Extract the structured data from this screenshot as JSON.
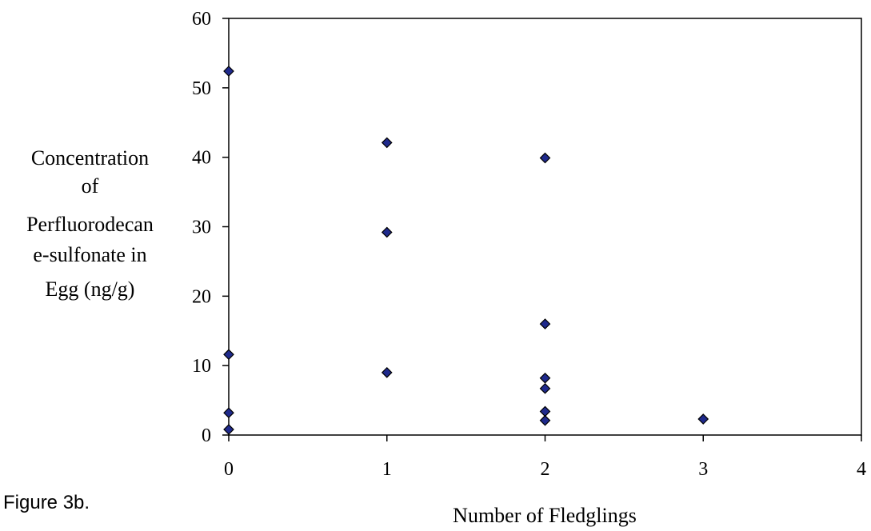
{
  "figure": {
    "caption": "Figure 3b."
  },
  "chart_data": {
    "type": "scatter",
    "title": "",
    "xlabel": "Number of Fledglings",
    "ylabel_lines": [
      "Concentration",
      "of",
      "Perfluorodecan",
      "e-sulfonate in",
      "Egg (ng/g)"
    ],
    "xlim": [
      0,
      4
    ],
    "ylim": [
      0,
      60
    ],
    "x_ticks": [
      0,
      1,
      2,
      3,
      4
    ],
    "y_ticks": [
      0,
      10,
      20,
      30,
      40,
      50,
      60
    ],
    "grid": false,
    "legend": "none",
    "marker": {
      "shape": "diamond",
      "fill_color": "#1f2a8c",
      "edge_color": "#000000"
    },
    "points": [
      {
        "x": 0,
        "y": 52.4
      },
      {
        "x": 0,
        "y": 11.6
      },
      {
        "x": 0,
        "y": 3.2
      },
      {
        "x": 0,
        "y": 0.8
      },
      {
        "x": 1,
        "y": 42.1
      },
      {
        "x": 1,
        "y": 29.2
      },
      {
        "x": 1,
        "y": 9.0
      },
      {
        "x": 2,
        "y": 39.9
      },
      {
        "x": 2,
        "y": 16.0
      },
      {
        "x": 2,
        "y": 8.2
      },
      {
        "x": 2,
        "y": 6.7
      },
      {
        "x": 2,
        "y": 3.4
      },
      {
        "x": 2,
        "y": 2.1
      },
      {
        "x": 3,
        "y": 2.3
      }
    ]
  }
}
